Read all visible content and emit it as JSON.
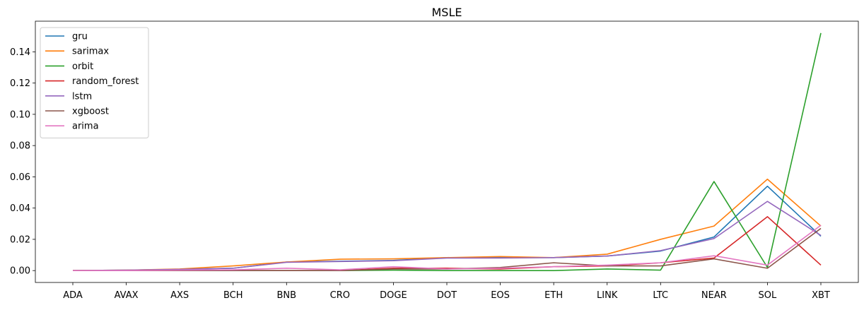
{
  "chart_data": {
    "type": "line",
    "title": "MSLE",
    "xlabel": "",
    "ylabel": "",
    "categories": [
      "ADA",
      "AVAX",
      "AXS",
      "BCH",
      "BNB",
      "CRO",
      "DOGE",
      "DOT",
      "EOS",
      "ETH",
      "LINK",
      "LTC",
      "NEAR",
      "SOL",
      "XBT"
    ],
    "ylim": [
      -0.0076,
      0.1596
    ],
    "yticks": [
      0.0,
      0.02,
      0.04,
      0.06,
      0.08,
      0.1,
      0.12,
      0.14
    ],
    "ytick_labels": [
      "0.00",
      "0.02",
      "0.04",
      "0.06",
      "0.08",
      "0.10",
      "0.12",
      "0.14"
    ],
    "grid": false,
    "legend_position": "top-left",
    "series": [
      {
        "name": "gru",
        "color": "#1f77b4",
        "values": [
          0.0,
          0.0003,
          0.0008,
          0.0015,
          0.0055,
          0.006,
          0.0065,
          0.0083,
          0.0083,
          0.0083,
          0.0093,
          0.0125,
          0.0215,
          0.054,
          0.022
        ]
      },
      {
        "name": "sarimax",
        "color": "#ff7f0e",
        "values": [
          0.0,
          0.0003,
          0.001,
          0.003,
          0.0055,
          0.0073,
          0.0075,
          0.0083,
          0.009,
          0.0083,
          0.0105,
          0.02,
          0.0285,
          0.0585,
          0.0285
        ]
      },
      {
        "name": "orbit",
        "color": "#2ca02c",
        "values": [
          0.0,
          0.0,
          0.0,
          0.0,
          0.0,
          0.0,
          0.0003,
          0.0,
          0.0,
          0.0,
          0.001,
          0.0003,
          0.057,
          0.002,
          0.152
        ]
      },
      {
        "name": "random_forest",
        "color": "#d62728",
        "values": [
          0.0,
          0.0,
          0.0,
          0.0,
          0.0,
          0.0,
          0.0015,
          0.0015,
          0.001,
          0.0025,
          0.003,
          0.005,
          0.008,
          0.0345,
          0.0035
        ]
      },
      {
        "name": "lstm",
        "color": "#9467bd",
        "values": [
          0.0,
          0.0003,
          0.0008,
          0.0015,
          0.0053,
          0.0058,
          0.0063,
          0.008,
          0.008,
          0.0083,
          0.0093,
          0.0128,
          0.0205,
          0.0443,
          0.0225
        ]
      },
      {
        "name": "xgboost",
        "color": "#8c564b",
        "values": [
          0.0,
          0.0,
          0.0,
          0.0,
          0.0,
          0.0,
          0.001,
          0.001,
          0.002,
          0.005,
          0.003,
          0.003,
          0.0075,
          0.0015,
          0.027
        ]
      },
      {
        "name": "arima",
        "color": "#e377c2",
        "values": [
          0.0,
          0.0,
          0.0003,
          0.0005,
          0.0015,
          0.0005,
          0.0025,
          0.001,
          0.0015,
          0.0025,
          0.0035,
          0.005,
          0.0095,
          0.0035,
          0.029
        ]
      }
    ]
  }
}
